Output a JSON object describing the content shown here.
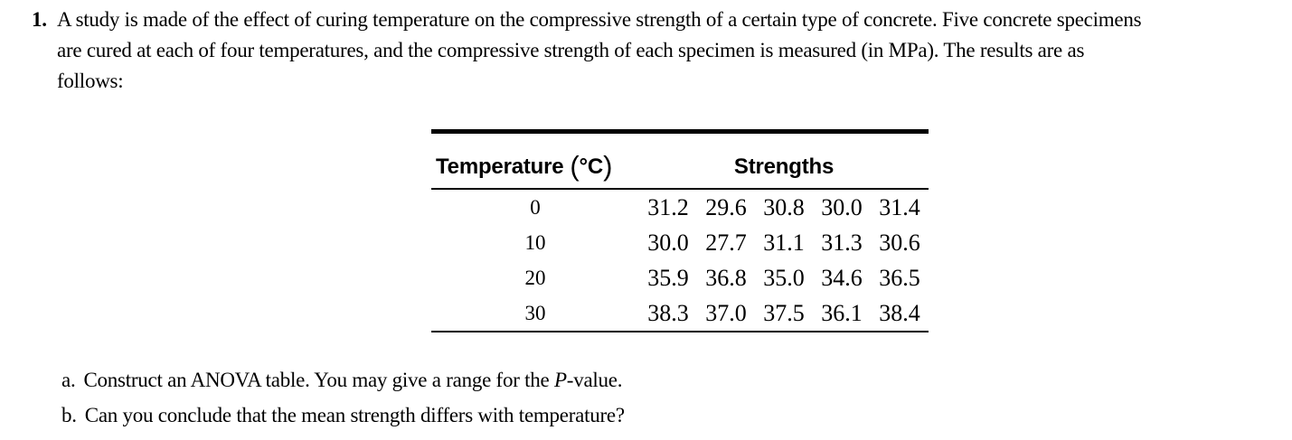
{
  "problem": {
    "number": "1.",
    "lines": [
      "A study is made of the effect of curing temperature on the compressive strength of a certain type of concrete. Five concrete specimens",
      "are cured at each of four temperatures, and the compressive strength of each specimen is measured (in MPa). The results are as",
      "follows:"
    ]
  },
  "table": {
    "col1_header": "Temperature",
    "col1_unit_open": "(",
    "col1_unit": "°C",
    "col1_unit_close": ")",
    "col2_header": "Strengths",
    "rows": [
      {
        "temperature": "0",
        "strengths": [
          "31.2",
          "29.6",
          "30.8",
          "30.0",
          "31.4"
        ]
      },
      {
        "temperature": "10",
        "strengths": [
          "30.0",
          "27.7",
          "31.1",
          "31.3",
          "30.6"
        ]
      },
      {
        "temperature": "20",
        "strengths": [
          "35.9",
          "36.8",
          "35.0",
          "34.6",
          "36.5"
        ]
      },
      {
        "temperature": "30",
        "strengths": [
          "38.3",
          "37.0",
          "37.5",
          "36.1",
          "38.4"
        ]
      }
    ]
  },
  "questions": [
    {
      "label": "a.",
      "text_before_italic": "Construct an ANOVA table. You may give a range for the ",
      "italic": "P",
      "text_after_italic": "-value."
    },
    {
      "label": "b.",
      "text_before_italic": "Can you conclude that the mean strength differs with temperature?",
      "italic": "",
      "text_after_italic": ""
    }
  ],
  "colors": {
    "background": "#ffffff",
    "text": "#000000",
    "rule": "#000000"
  }
}
